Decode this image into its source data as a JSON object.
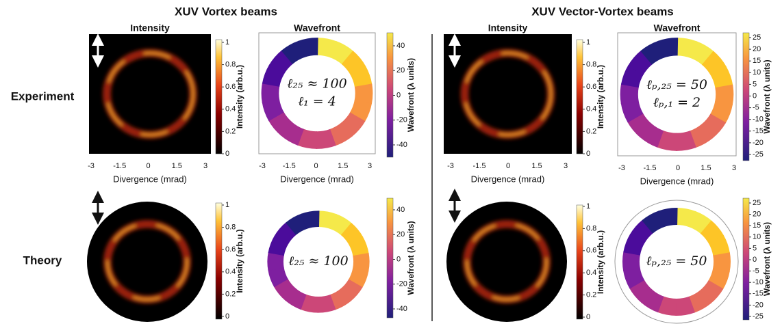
{
  "headers": {
    "left": "XUV Vortex beams",
    "right": "XUV Vector-Vortex beams"
  },
  "row_labels": [
    "Experiment",
    "Theory"
  ],
  "panels": [
    {
      "title": "Intensity",
      "colorbar_label": "Intensity (arb.u.)",
      "colorbar_ticks": [
        1,
        0.8,
        0.6,
        0.4,
        0.2,
        0
      ],
      "x_label": "Divergence (mrad)",
      "x_ticks": [
        -3,
        -1.5,
        0,
        1.5,
        3
      ]
    },
    {
      "title": "Wavefront",
      "colorbar_label": "Wavefront (λ units)",
      "colorbar_ticks": [
        40,
        20,
        0,
        -20,
        -40
      ],
      "x_label": "Divergence (mrad)",
      "x_ticks": [
        -3,
        -1.5,
        0,
        1.5,
        3
      ],
      "annotation": [
        "ℓ₂₅ ≈ 100",
        "ℓ₁ = 4"
      ]
    },
    {
      "title": "Intensity",
      "colorbar_label": "Intensity (arb.u.)",
      "colorbar_ticks": [
        1,
        0.8,
        0.6,
        0.4,
        0.2,
        0
      ],
      "x_label": "Divergence (mrad)",
      "x_ticks": [
        -3,
        -1.5,
        0,
        1.5,
        3
      ]
    },
    {
      "title": "Wavefront",
      "colorbar_label": "Wavefront (λ units)",
      "colorbar_ticks": [
        25,
        20,
        15,
        10,
        5,
        0,
        -5,
        -10,
        -15,
        -20,
        -25
      ],
      "x_label": "Divergence (mrad)",
      "x_ticks": [
        -3,
        -1.5,
        0,
        1.5,
        3
      ],
      "annotation": [
        "ℓₚ,₂₅ = 50",
        "ℓₚ,₁ = 2"
      ]
    },
    {
      "colorbar_label": "Intensity (arb.u.)",
      "colorbar_ticks": [
        1,
        0.8,
        0.6,
        0.4,
        0.2,
        0
      ]
    },
    {
      "colorbar_label": "Wavefront (λ units)",
      "colorbar_ticks": [
        40,
        20,
        0,
        -20,
        -40
      ],
      "annotation": [
        "ℓ₂₅ ≈ 100"
      ]
    },
    {
      "colorbar_label": "Intensity (arb.u.)",
      "colorbar_ticks": [
        1,
        0.8,
        0.6,
        0.4,
        0.2,
        0
      ]
    },
    {
      "colorbar_label": "Wavefront (λ units)",
      "colorbar_ticks": [
        25,
        20,
        15,
        10,
        5,
        0,
        -5,
        -10,
        -15,
        -20,
        -25
      ],
      "annotation": [
        "ℓₚ,₂₅ = 50"
      ]
    }
  ]
}
